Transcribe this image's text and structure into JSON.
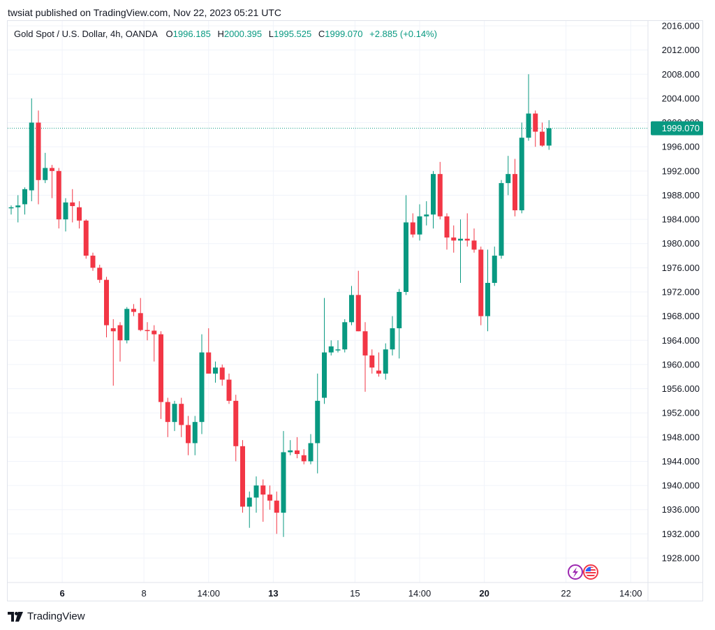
{
  "header": {
    "published_by": "twsiat published on TradingView.com, Nov 22, 2023 05:21 UTC"
  },
  "legend": {
    "symbol": "Gold Spot / U.S. Dollar, 4h, OANDA",
    "o_label": "O",
    "o_value": "1996.185",
    "h_label": "H",
    "h_value": "2000.395",
    "l_label": "L",
    "l_value": "1995.525",
    "c_label": "C",
    "c_value": "1999.070",
    "change": "+2.885 (+0.14%)"
  },
  "footer": {
    "brand": "TradingView"
  },
  "colors": {
    "up": "#089981",
    "down": "#f23645",
    "grid": "#f0f3fa",
    "price_line": "#089981"
  },
  "chart_data": {
    "type": "candlestick",
    "ylim": [
      1924,
      2018
    ],
    "y_ticks": [
      "2016.000",
      "2012.000",
      "2008.000",
      "2004.000",
      "2000.000",
      "1996.000",
      "1992.000",
      "1988.000",
      "1984.000",
      "1980.000",
      "1976.000",
      "1972.000",
      "1968.000",
      "1964.000",
      "1960.000",
      "1956.000",
      "1952.000",
      "1948.000",
      "1944.000",
      "1940.000",
      "1936.000",
      "1932.000",
      "1928.000"
    ],
    "x_ticks": [
      {
        "label": "6",
        "bold": true,
        "index": 7.5
      },
      {
        "label": "8",
        "bold": false,
        "index": 19.5
      },
      {
        "label": "14:00",
        "bold": false,
        "index": 29
      },
      {
        "label": "13",
        "bold": true,
        "index": 38.5
      },
      {
        "label": "15",
        "bold": false,
        "index": 50.5
      },
      {
        "label": "14:00",
        "bold": false,
        "index": 60
      },
      {
        "label": "20",
        "bold": true,
        "index": 69.5
      },
      {
        "label": "22",
        "bold": false,
        "index": 81.5
      },
      {
        "label": "14:00",
        "bold": false,
        "index": 91
      }
    ],
    "last_price": "1999.070",
    "last_price_value": 1999.07,
    "candles": [
      [
        1986.0,
        1986.3,
        1984.8,
        1986.0
      ],
      [
        1986.0,
        1988.0,
        1983.5,
        1986.3
      ],
      [
        1986.5,
        1989.3,
        1984.8,
        1989.0
      ],
      [
        1988.8,
        2004.0,
        1987.0,
        2000.0
      ],
      [
        2000.0,
        2002.0,
        1986.5,
        1990.5
      ],
      [
        1990.5,
        1995.0,
        1990.0,
        1992.5
      ],
      [
        1992.5,
        1993.0,
        1987.5,
        1992.0
      ],
      [
        1992.0,
        1992.5,
        1982.5,
        1984.0
      ],
      [
        1984.0,
        1987.5,
        1982.0,
        1986.8
      ],
      [
        1986.8,
        1989.0,
        1983.5,
        1986.2
      ],
      [
        1986.0,
        1987.0,
        1982.5,
        1983.8
      ],
      [
        1983.8,
        1984.0,
        1977.5,
        1978.0
      ],
      [
        1978.0,
        1978.5,
        1975.5,
        1976.0
      ],
      [
        1976.0,
        1976.5,
        1973.5,
        1974.0
      ],
      [
        1974.0,
        1974.5,
        1964.5,
        1966.5
      ],
      [
        1966.0,
        1967.5,
        1956.5,
        1965.5
      ],
      [
        1966.5,
        1967.0,
        1960.5,
        1964.0
      ],
      [
        1964.0,
        1969.5,
        1963.5,
        1969.2
      ],
      [
        1969.2,
        1970.0,
        1968.0,
        1968.7
      ],
      [
        1968.5,
        1971.0,
        1965.5,
        1965.7
      ],
      [
        1965.7,
        1967.0,
        1964.0,
        1965.6
      ],
      [
        1965.6,
        1966.5,
        1960.5,
        1965.0
      ],
      [
        1965.0,
        1965.5,
        1951.0,
        1953.8
      ],
      [
        1953.8,
        1954.5,
        1948.0,
        1950.5
      ],
      [
        1950.5,
        1954.0,
        1949.0,
        1953.5
      ],
      [
        1953.5,
        1954.5,
        1948.0,
        1950.0
      ],
      [
        1950.0,
        1951.5,
        1945.0,
        1947.0
      ],
      [
        1947.0,
        1951.5,
        1945.0,
        1950.5
      ],
      [
        1950.5,
        1965.0,
        1948.5,
        1962.0
      ],
      [
        1962.0,
        1966.0,
        1958.5,
        1958.5
      ],
      [
        1958.5,
        1960.5,
        1957.0,
        1959.5
      ],
      [
        1959.5,
        1960.0,
        1956.5,
        1957.5
      ],
      [
        1957.5,
        1958.5,
        1953.5,
        1954.0
      ],
      [
        1954.0,
        1955.0,
        1944.0,
        1946.5
      ],
      [
        1946.5,
        1947.5,
        1935.5,
        1936.5
      ],
      [
        1936.5,
        1939.0,
        1933.0,
        1938.0
      ],
      [
        1938.0,
        1941.5,
        1935.5,
        1940.0
      ],
      [
        1940.0,
        1941.0,
        1934.0,
        1938.5
      ],
      [
        1938.5,
        1940.0,
        1936.0,
        1937.5
      ],
      [
        1937.5,
        1939.0,
        1932.0,
        1935.5
      ],
      [
        1935.5,
        1949.0,
        1931.5,
        1945.5
      ],
      [
        1945.5,
        1947.5,
        1945.0,
        1945.8
      ],
      [
        1945.8,
        1948.0,
        1944.5,
        1945.2
      ],
      [
        1945.0,
        1946.0,
        1943.5,
        1944.0
      ],
      [
        1944.0,
        1948.5,
        1943.5,
        1947.0
      ],
      [
        1947.0,
        1958.5,
        1942.0,
        1954.0
      ],
      [
        1954.5,
        1971.0,
        1953.5,
        1962.0
      ],
      [
        1962.0,
        1964.0,
        1961.5,
        1963.0
      ],
      [
        1962.5,
        1964.0,
        1962.0,
        1962.5
      ],
      [
        1962.5,
        1967.5,
        1962.0,
        1967.0
      ],
      [
        1967.0,
        1973.0,
        1966.5,
        1971.5
      ],
      [
        1971.5,
        1975.5,
        1965.5,
        1965.5
      ],
      [
        1965.5,
        1967.0,
        1955.5,
        1961.5
      ],
      [
        1961.5,
        1962.5,
        1958.5,
        1959.5
      ],
      [
        1959.0,
        1962.0,
        1958.0,
        1958.5
      ],
      [
        1958.5,
        1963.5,
        1957.5,
        1962.5
      ],
      [
        1962.5,
        1968.0,
        1961.5,
        1966.0
      ],
      [
        1966.0,
        1972.5,
        1961.0,
        1972.0
      ],
      [
        1972.0,
        1988.0,
        1971.5,
        1983.5
      ],
      [
        1983.5,
        1985.0,
        1981.0,
        1981.5
      ],
      [
        1981.5,
        1986.5,
        1980.5,
        1984.5
      ],
      [
        1984.5,
        1987.0,
        1983.0,
        1984.8
      ],
      [
        1984.8,
        1992.0,
        1982.5,
        1991.5
      ],
      [
        1991.5,
        1993.5,
        1984.0,
        1984.5
      ],
      [
        1984.5,
        1985.0,
        1979.0,
        1981.0
      ],
      [
        1981.0,
        1983.0,
        1978.5,
        1980.5
      ],
      [
        1980.5,
        1984.0,
        1973.5,
        1980.8
      ],
      [
        1980.8,
        1985.0,
        1979.5,
        1980.5
      ],
      [
        1980.5,
        1982.5,
        1978.5,
        1979.0
      ],
      [
        1979.0,
        1979.5,
        1966.5,
        1968.0
      ],
      [
        1968.0,
        1979.0,
        1965.5,
        1973.5
      ],
      [
        1973.5,
        1979.5,
        1973.0,
        1978.0
      ],
      [
        1978.0,
        1990.5,
        1977.5,
        1990.0
      ],
      [
        1990.0,
        1994.5,
        1988.0,
        1991.5
      ],
      [
        1991.5,
        1994.0,
        1984.5,
        1985.5
      ],
      [
        1985.5,
        2000.0,
        1985.0,
        1997.5
      ],
      [
        1997.5,
        2008.0,
        1997.0,
        2001.5
      ],
      [
        2001.5,
        2002.0,
        1996.0,
        1998.5
      ],
      [
        1998.5,
        2000.0,
        1996.0,
        1996.2
      ],
      [
        1996.2,
        2000.4,
        1995.5,
        1999.07
      ]
    ]
  }
}
